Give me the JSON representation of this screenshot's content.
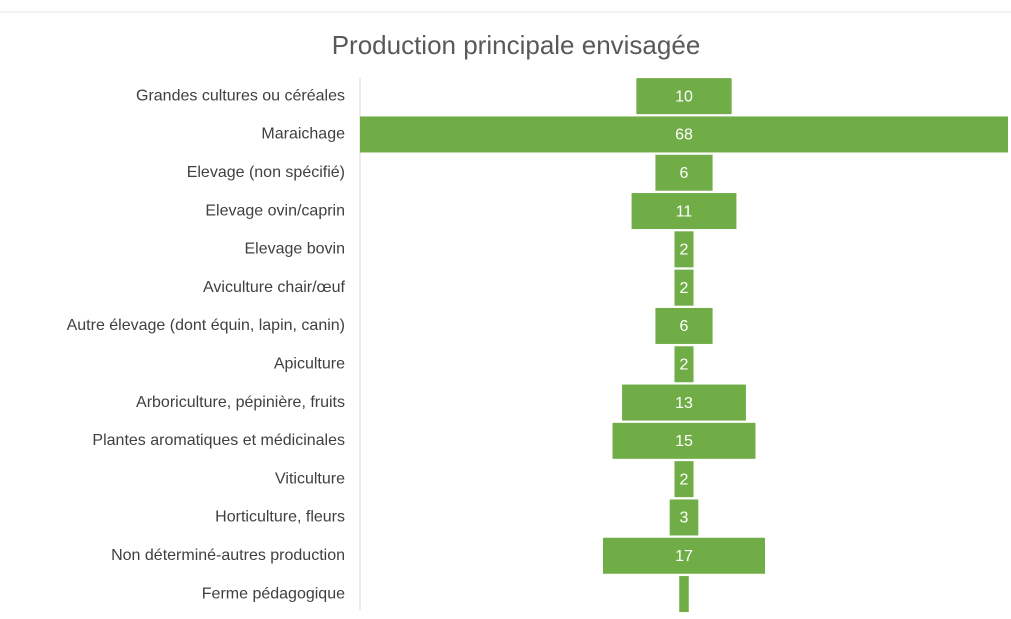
{
  "chart_data": {
    "type": "funnel",
    "title": "Production principale envisagée",
    "categories": [
      "Grandes cultures ou céréales",
      "Maraichage",
      "Elevage (non spécifié)",
      "Elevage ovin/caprin",
      "Elevage bovin",
      "Aviculture chair/œuf",
      "Autre élevage (dont équin, lapin, canin)",
      "Apiculture",
      "Arboriculture, pépinière, fruits",
      "Plantes aromatiques et médicinales",
      "Viticulture",
      "Horticulture, fleurs",
      "Non déterminé-autres production",
      "Ferme pédagogique"
    ],
    "values": [
      10,
      68,
      6,
      11,
      2,
      2,
      6,
      2,
      13,
      15,
      2,
      3,
      17,
      1
    ],
    "color": "#70ad47"
  }
}
